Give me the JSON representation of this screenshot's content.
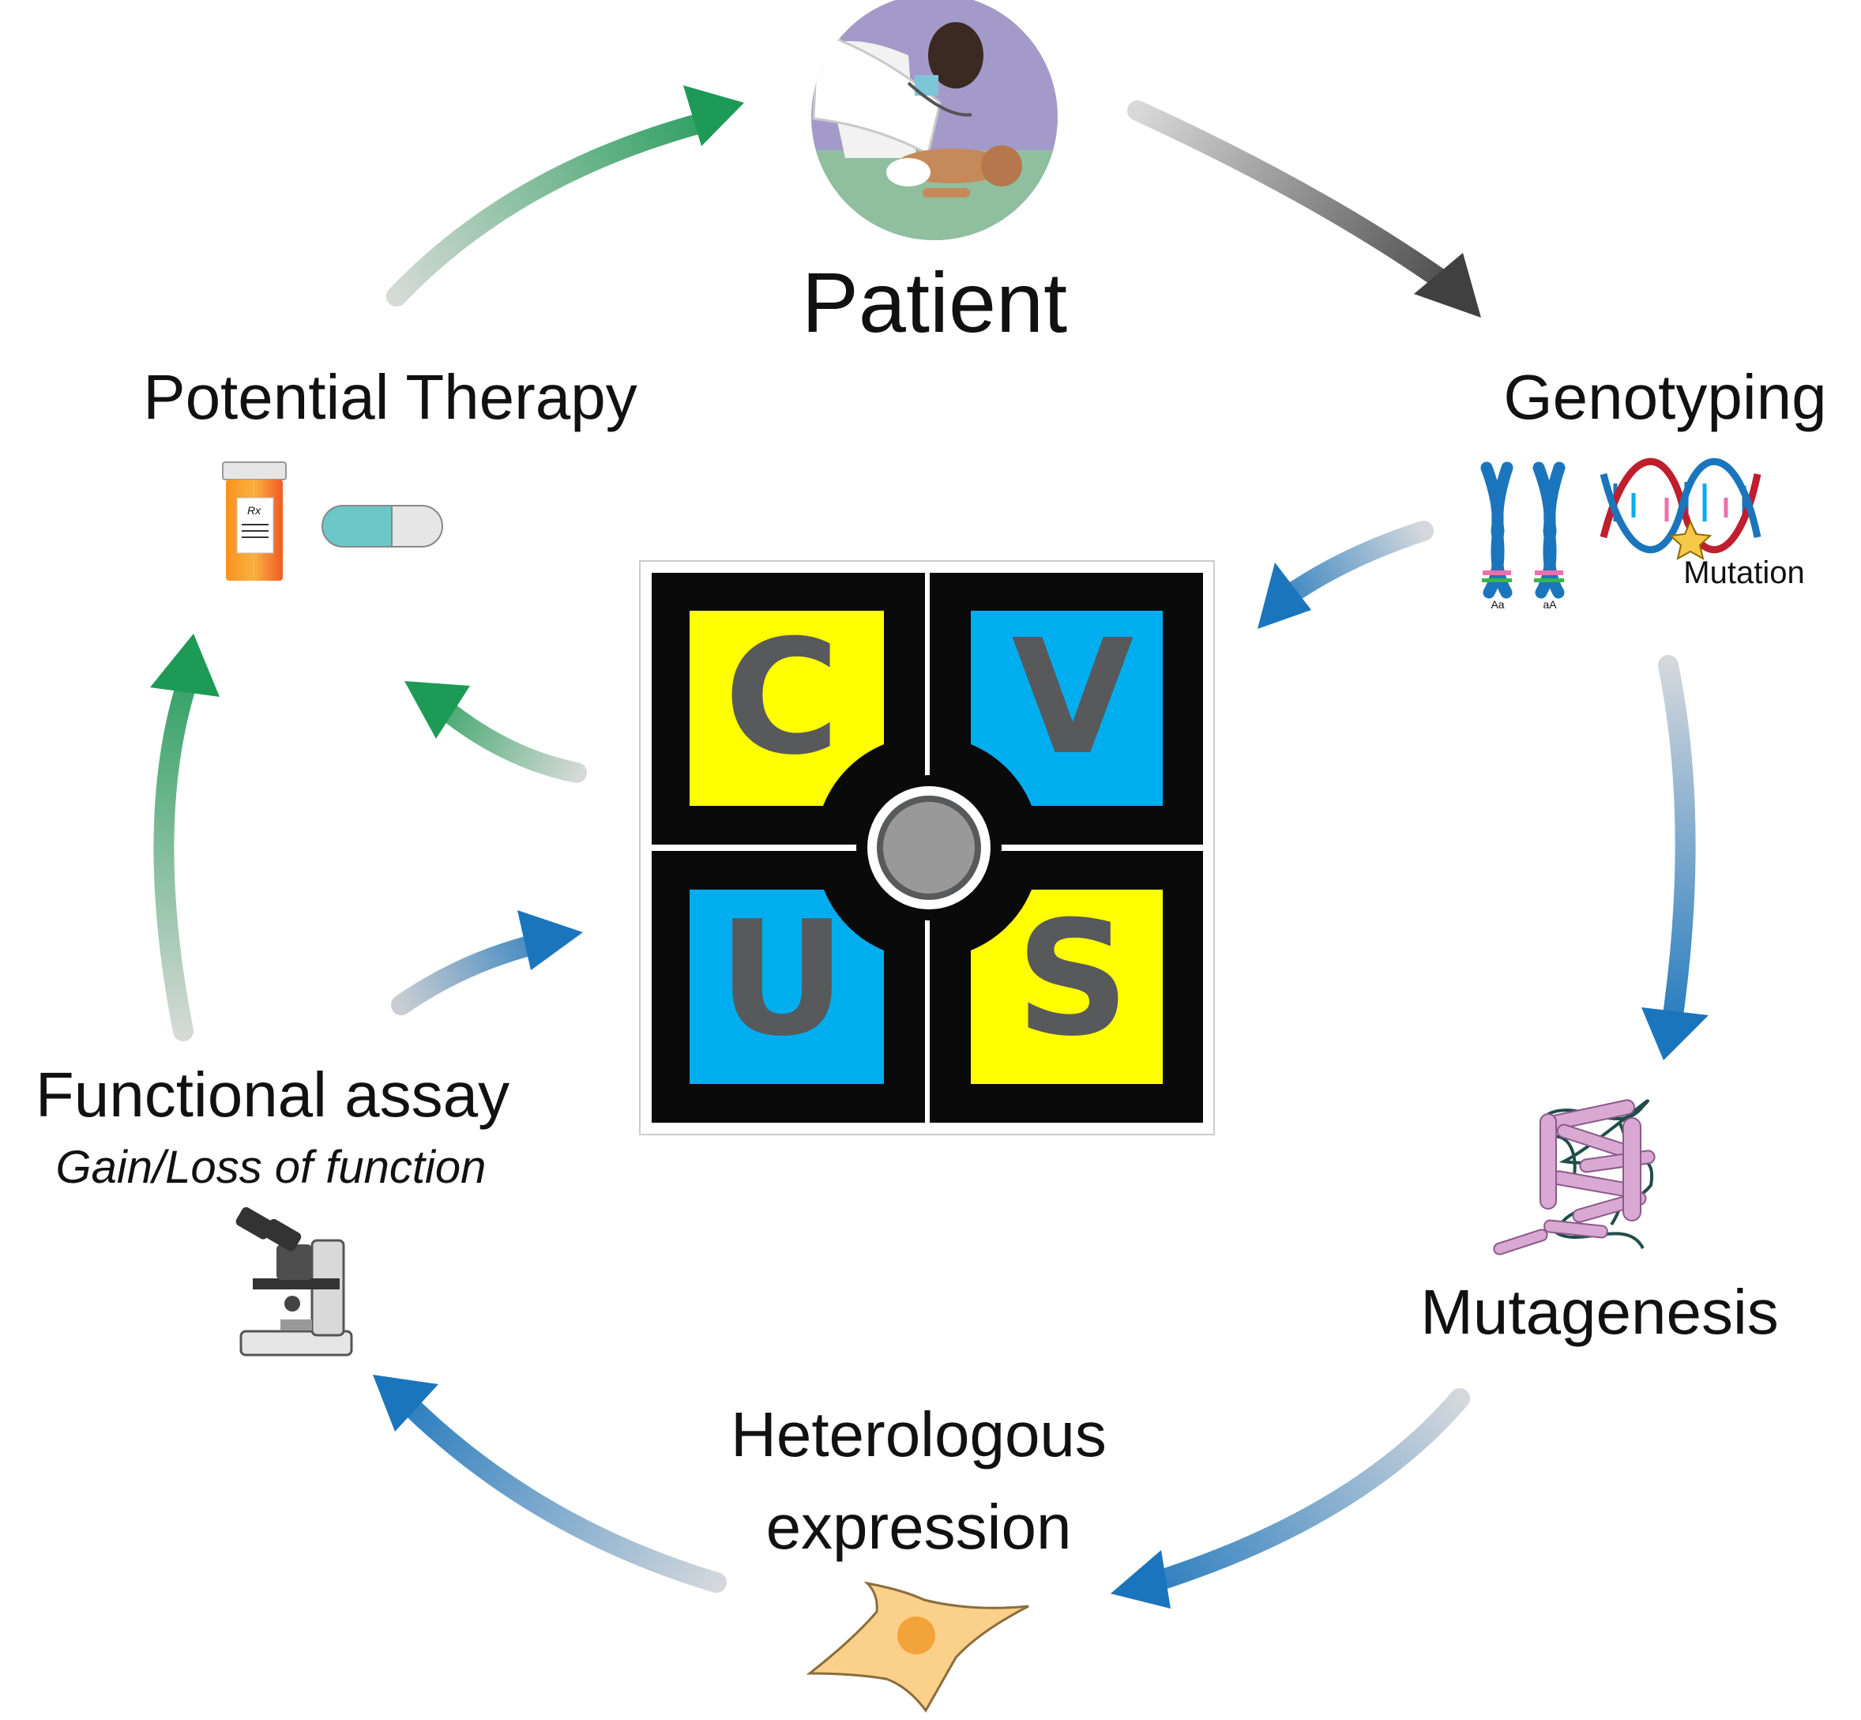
{
  "labels": {
    "patient": "Patient",
    "genotyping": "Genotyping",
    "mutation": "Mutation",
    "allele_1": "Aa",
    "allele_2": "aA",
    "mutagenesis": "Mutagenesis",
    "heterologous_line1": "Heterologous",
    "heterologous_line2": "expression",
    "functional_assay": "Functional assay",
    "functional_subtitle": "Gain/Loss of function",
    "potential_therapy": "Potential Therapy",
    "rx": "Rx"
  },
  "logo": {
    "letters": [
      "C",
      "V",
      "U",
      "S"
    ],
    "colors": {
      "yellow": "#ffff00",
      "blue": "#00adef",
      "black": "#0a0a0a",
      "letter_gray": "#58595b",
      "center_gray": "#999999"
    }
  },
  "colors": {
    "green_arrow": "#1d9a55",
    "blue_arrow": "#1b75bc",
    "gray_arrow": "#4d4d4d",
    "faded_start": "#d4d8dc"
  },
  "icons": [
    "doctor-patient-icon",
    "chromosome-icon",
    "dna-helix-icon",
    "protein-structure-icon",
    "cell-icon",
    "microscope-icon",
    "pill-bottle-icon",
    "capsule-icon"
  ]
}
